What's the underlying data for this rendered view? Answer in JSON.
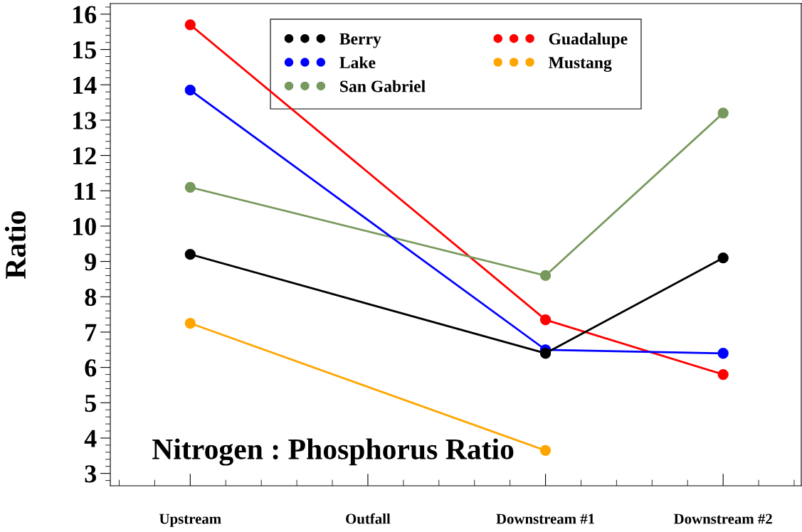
{
  "chart_data": {
    "type": "line",
    "ylabel": "Ratio",
    "categories": [
      "Upstream",
      "Outfall",
      "Downstream #1",
      "Downstream #2"
    ],
    "series": [
      {
        "name": "Berry",
        "color": "#000000",
        "values": [
          9.2,
          null,
          6.4,
          9.1
        ]
      },
      {
        "name": "Lake",
        "color": "#0000ff",
        "values": [
          13.85,
          null,
          6.5,
          6.4
        ]
      },
      {
        "name": "San Gabriel",
        "color": "#77995d",
        "values": [
          11.1,
          null,
          8.6,
          13.2
        ]
      },
      {
        "name": "Guadalupe",
        "color": "#ff0000",
        "values": [
          15.7,
          null,
          7.35,
          5.8
        ]
      },
      {
        "name": "Mustang",
        "color": "#ffa500",
        "values": [
          7.25,
          null,
          3.65,
          null
        ]
      }
    ],
    "ylim": [
      2.65,
      16.3
    ],
    "yticks": [
      3,
      4,
      5,
      6,
      7,
      8,
      9,
      10,
      11,
      12,
      13,
      14,
      15,
      16
    ],
    "marker": "circle",
    "legend": "top",
    "grid": false,
    "annotations": [
      "Nitrogen : Phosphorus Ratio"
    ]
  }
}
